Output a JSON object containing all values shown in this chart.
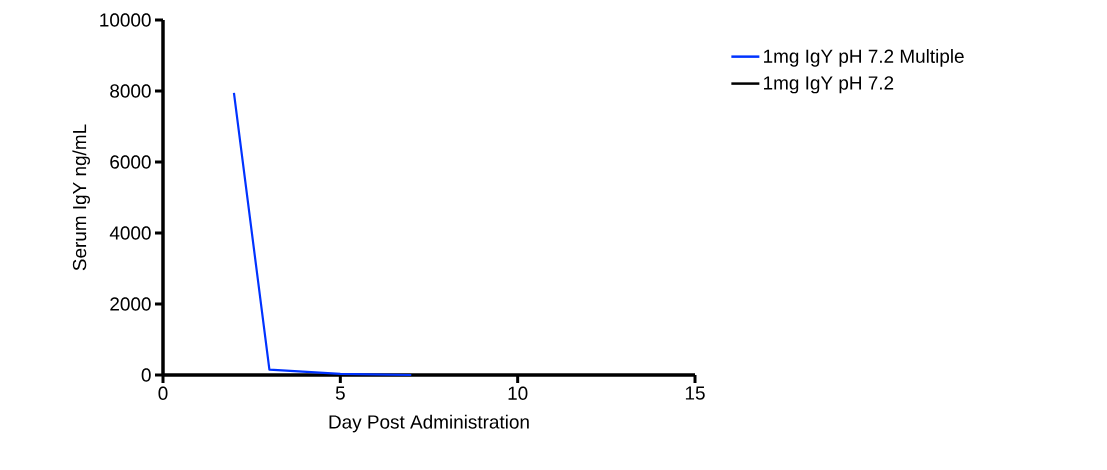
{
  "chart_data": {
    "type": "line",
    "xlabel": "Day Post Administration",
    "ylabel": "Serum IgY ng/mL",
    "xlim": [
      0,
      15
    ],
    "ylim": [
      0,
      10000
    ],
    "xticks": [
      0,
      5,
      10,
      15
    ],
    "yticks": [
      0,
      2000,
      4000,
      6000,
      8000,
      10000
    ],
    "grid": false,
    "legend": "top right",
    "marker": "none",
    "line_style": "solid",
    "series": [
      {
        "name": "1mg IgY pH 7.2 Multiple",
        "color": "#0033ff",
        "x": [
          2,
          3,
          5,
          7
        ],
        "values": [
          7950,
          150,
          30,
          0
        ]
      },
      {
        "name": "1mg IgY pH 7.2",
        "color": "#000000"
      }
    ]
  }
}
